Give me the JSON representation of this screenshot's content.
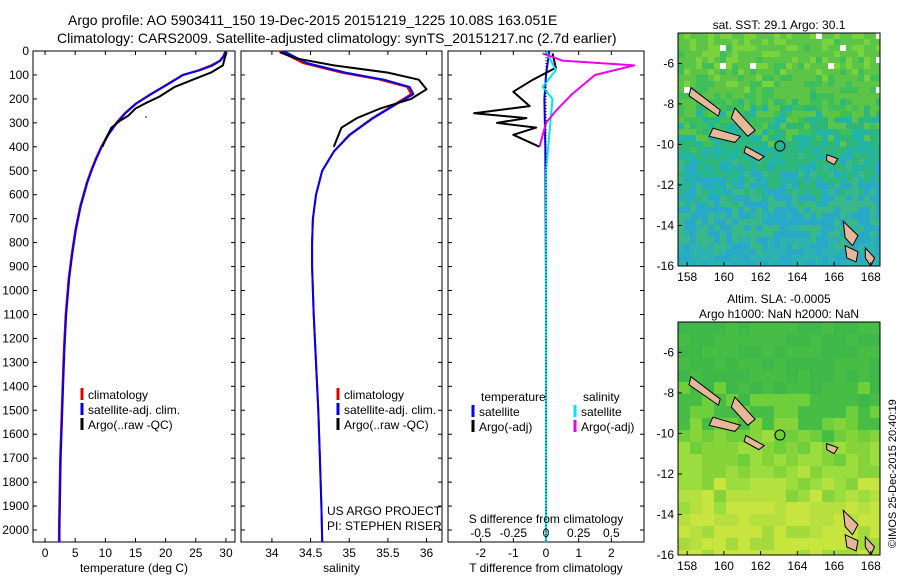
{
  "title_line1": "Argo profile: AO 5903411_150 19-Dec-2015 20151219_1225 10.08S 163.051E",
  "title_line2": "Climatology: CARS2009. Satellite-adjusted climatology: synTS_20151217.nc (2.7d earlier)",
  "credit_line1": "US ARGO PROJECT",
  "credit_line2": "PI: STEPHEN RISER",
  "side_stamp": "©IMOS 25-Dec-2015 20:40:19",
  "colors": {
    "climatology": "#dd0000",
    "satellite": "#0000ee",
    "argo": "#000000",
    "sal_satellite": "#00e5ee",
    "sal_argo": "#ee00ee"
  },
  "chart_data": [
    {
      "type": "line",
      "xlabel": "temperature (deg C)",
      "ylabel": "",
      "xlim": [
        -2,
        31.5
      ],
      "ylim": [
        2050,
        0
      ],
      "xticks": [
        0,
        5,
        10,
        15,
        20,
        25,
        30
      ],
      "yticks": [
        0,
        100,
        200,
        300,
        400,
        500,
        600,
        700,
        800,
        900,
        1000,
        1100,
        1200,
        1300,
        1400,
        1500,
        1600,
        1700,
        1800,
        1900,
        2000
      ],
      "legend": [
        "climatology",
        "satellite-adj. clim.",
        "Argo(..raw -QC)"
      ],
      "legend_position": "lower-center",
      "series": [
        {
          "name": "climatology",
          "color": "#dd0000",
          "x": [
            29.9,
            29.6,
            29.0,
            27.5,
            25.5,
            22.8,
            20.2,
            17.5,
            15.0,
            13.2,
            11.8,
            10.4,
            9.3,
            8.4,
            7.6,
            6.9,
            5.8,
            5.0,
            4.4,
            3.9,
            3.4,
            3.1,
            2.9,
            2.7,
            2.5,
            2.4,
            2.3,
            2.3
          ],
          "y": [
            0,
            20,
            40,
            60,
            80,
            100,
            140,
            180,
            220,
            260,
            300,
            350,
            400,
            450,
            500,
            550,
            650,
            750,
            850,
            950,
            1100,
            1250,
            1400,
            1550,
            1700,
            1850,
            2000,
            2050
          ]
        },
        {
          "name": "satellite-adj. clim.",
          "color": "#0000ee",
          "x": [
            30.0,
            29.7,
            29.1,
            27.8,
            25.7,
            22.9,
            20.3,
            17.6,
            15.1,
            13.3,
            11.9,
            10.5,
            9.4,
            8.5,
            7.7,
            7.0,
            5.9,
            5.1,
            4.5,
            4.0,
            3.5,
            3.2,
            3.0,
            2.8,
            2.6,
            2.5,
            2.4,
            2.4
          ],
          "y": [
            0,
            20,
            40,
            60,
            80,
            100,
            140,
            180,
            220,
            260,
            300,
            350,
            400,
            450,
            500,
            550,
            650,
            750,
            850,
            950,
            1100,
            1250,
            1400,
            1550,
            1700,
            1850,
            2000,
            2050
          ]
        },
        {
          "name": "Argo(..raw -QC)",
          "color": "#000000",
          "x": [
            30.1,
            29.8,
            29.5,
            27.5,
            24.5,
            21.5,
            19.0,
            16.5,
            15.0,
            13.8,
            12.5,
            11.0,
            10.2,
            9.5
          ],
          "y": [
            5,
            30,
            60,
            90,
            120,
            150,
            190,
            220,
            240,
            270,
            290,
            320,
            360,
            400
          ]
        }
      ]
    },
    {
      "type": "line",
      "xlabel": "salinity",
      "ylabel": "",
      "xlim": [
        33.6,
        36.2
      ],
      "ylim": [
        2050,
        0
      ],
      "xticks": [
        34,
        34.5,
        35,
        35.5,
        36
      ],
      "legend": [
        "climatology",
        "satellite-adj. clim.",
        "Argo(..raw -QC)"
      ],
      "legend_position": "lower-right",
      "series": [
        {
          "name": "climatology",
          "color": "#dd0000",
          "x": [
            34.1,
            34.4,
            34.9,
            35.4,
            35.75,
            35.8,
            35.6,
            35.3,
            35.0,
            34.8,
            34.65,
            34.57,
            34.53,
            34.52,
            34.52,
            34.54,
            34.57,
            34.6,
            34.62,
            34.64,
            34.65
          ],
          "y": [
            0,
            50,
            90,
            120,
            150,
            180,
            220,
            280,
            350,
            420,
            500,
            600,
            700,
            800,
            900,
            1100,
            1300,
            1500,
            1700,
            1900,
            2050
          ]
        },
        {
          "name": "satellite-adj. clim.",
          "color": "#0000ee",
          "x": [
            34.15,
            34.45,
            34.95,
            35.45,
            35.78,
            35.83,
            35.62,
            35.31,
            35.01,
            34.8,
            34.65,
            34.57,
            34.53,
            34.52,
            34.52,
            34.54,
            34.57,
            34.6,
            34.62,
            34.64,
            34.65
          ],
          "y": [
            0,
            50,
            90,
            120,
            150,
            180,
            220,
            280,
            350,
            420,
            500,
            600,
            700,
            800,
            900,
            1100,
            1300,
            1500,
            1700,
            1900,
            2050
          ]
        },
        {
          "name": "Argo(..raw -QC)",
          "color": "#000000",
          "x": [
            34.1,
            34.3,
            34.8,
            35.5,
            35.9,
            36.0,
            35.8,
            35.4,
            35.1,
            34.9,
            34.85,
            34.8
          ],
          "y": [
            5,
            30,
            60,
            90,
            120,
            160,
            200,
            240,
            280,
            320,
            360,
            400
          ]
        }
      ]
    },
    {
      "type": "line",
      "xlabel": "T difference from climatology",
      "title": "S difference from climatology",
      "xlim": [
        -3,
        3
      ],
      "ylim": [
        2050,
        0
      ],
      "xticks": [
        -2,
        -1,
        0,
        1,
        2
      ],
      "xticks_top": [
        -0.5,
        -0.25,
        0,
        0.25,
        0.5
      ],
      "legend": [
        "temperature",
        "satellite",
        "Argo(-adj)",
        "salinity",
        "satellite",
        "Argo(-adj)"
      ],
      "legend_position": "lower-center",
      "series": [
        {
          "name": "satellite",
          "color": "#0000ee",
          "x": [
            0.1,
            0.0,
            -0.05,
            -0.02,
            0.0,
            0.0
          ],
          "y": [
            0,
            100,
            200,
            400,
            1000,
            2050
          ]
        },
        {
          "name": "Argo(-adj)",
          "color": "#000000",
          "x": [
            0.2,
            0.3,
            -0.4,
            -1.0,
            -0.5,
            -2.2,
            -0.6,
            -1.5,
            -0.3,
            -1.0,
            -0.2
          ],
          "y": [
            10,
            70,
            120,
            170,
            230,
            260,
            280,
            300,
            320,
            350,
            400
          ]
        },
        {
          "name": "satellite",
          "color": "#00e5ee",
          "x": [
            0.0,
            0.3,
            -0.1,
            0.2,
            0.0,
            0.0
          ],
          "y": [
            0,
            80,
            150,
            200,
            500,
            2050
          ]
        },
        {
          "name": "Argo(-adj)",
          "color": "#ee00ee",
          "x": [
            -0.1,
            0.5,
            2.7,
            1.5,
            0.8,
            0.3,
            0.0,
            -0.2
          ],
          "y": [
            10,
            40,
            60,
            100,
            180,
            250,
            300,
            400
          ]
        }
      ]
    }
  ],
  "maps": [
    {
      "title_lines": [
        "sat. SST: 29.1  Argo: 30.1"
      ],
      "xticks": [
        158,
        160,
        162,
        164,
        166,
        168
      ],
      "yticks": [
        -6,
        -8,
        -10,
        -12,
        -14,
        -16
      ],
      "lon_range": [
        157.5,
        168.5
      ],
      "lat_range": [
        -16,
        -4.5
      ]
    },
    {
      "title_lines": [
        "Altim. SLA: -0.0005",
        "Argo h1000: NaN h2000: NaN"
      ],
      "xticks": [
        158,
        160,
        162,
        164,
        166,
        168
      ],
      "yticks": [
        -6,
        -8,
        -10,
        -12,
        -14,
        -16
      ],
      "lon_range": [
        157.5,
        168.5
      ],
      "lat_range": [
        -16,
        -4.5
      ]
    }
  ],
  "profile_location": {
    "lon": 163.051,
    "lat": -10.08
  }
}
